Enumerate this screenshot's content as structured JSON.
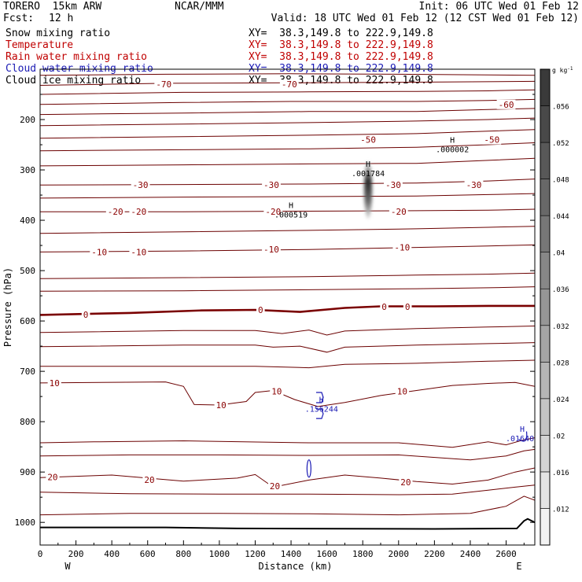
{
  "header": {
    "model": "TORERO  15km ARW",
    "org": "NCAR/MMM",
    "init": "Init: 06 UTC Wed 01 Feb 12",
    "fcst_label": "Fcst:",
    "fcst_value": "12 h",
    "valid": "Valid: 18 UTC Wed 01 Feb 12 (12 CST Wed 01 Feb 12)"
  },
  "fields": [
    {
      "name": "Snow mixing ratio",
      "xy": "XY=  38.3,149.8 to 222.9,149.8",
      "color": "#000000",
      "xy_color": "#000000"
    },
    {
      "name": "Temperature",
      "xy": "XY=  38.3,149.8 to 222.9,149.8",
      "color": "#c00000",
      "xy_color": "#c00000"
    },
    {
      "name": "Rain water mixing ratio",
      "xy": "XY=  38.3,149.8 to 222.9,149.8",
      "color": "#c00000",
      "xy_color": "#c00000"
    },
    {
      "name": "Cloud water mixing ratio",
      "xy": "XY=  38.3,149.8 to 222.9,149.8",
      "color": "#1a1ab4",
      "xy_color": "#1a1ab4"
    },
    {
      "name": "Cloud ice mixing ratio",
      "xy": "XY=  38.3,149.8 to 222.9,149.8",
      "color": "#000000",
      "xy_color": "#000000"
    }
  ],
  "chart_data": {
    "type": "cross-section contour",
    "xlabel": "Distance (km)",
    "ylabel": "Pressure (hPa)",
    "xlim": [
      0,
      2760
    ],
    "ylim": [
      1045,
      100
    ],
    "x_ticks": [
      0,
      200,
      400,
      600,
      800,
      1000,
      1200,
      1400,
      1600,
      1800,
      2000,
      2200,
      2400,
      2600
    ],
    "y_ticks": [
      200,
      300,
      400,
      500,
      600,
      700,
      800,
      900,
      1000
    ],
    "x_end_labels": {
      "left": "W",
      "right": "E"
    },
    "temperature_contour_interval": 5,
    "temperature_labels": [
      {
        "value": "-70",
        "x": 690,
        "p": 130
      },
      {
        "value": "-70",
        "x": 1390,
        "p": 130
      },
      {
        "value": "-60",
        "x": 2600,
        "p": 170
      },
      {
        "value": "-50",
        "x": 1830,
        "p": 240
      },
      {
        "value": "-50",
        "x": 2520,
        "p": 240
      },
      {
        "value": "-30",
        "x": 560,
        "p": 330
      },
      {
        "value": "-30",
        "x": 1290,
        "p": 330
      },
      {
        "value": "-30",
        "x": 1970,
        "p": 330
      },
      {
        "value": "-30",
        "x": 2420,
        "p": 330
      },
      {
        "value": "-20",
        "x": 420,
        "p": 383
      },
      {
        "value": "-20",
        "x": 550,
        "p": 383
      },
      {
        "value": "-20",
        "x": 1300,
        "p": 383
      },
      {
        "value": "-20",
        "x": 2000,
        "p": 383
      },
      {
        "value": "-10",
        "x": 330,
        "p": 463
      },
      {
        "value": "-10",
        "x": 550,
        "p": 463
      },
      {
        "value": "-10",
        "x": 1290,
        "p": 458
      },
      {
        "value": "-10",
        "x": 2020,
        "p": 454
      },
      {
        "value": "0",
        "x": 255,
        "p": 587
      },
      {
        "value": "0",
        "x": 1230,
        "p": 578
      },
      {
        "value": "0",
        "x": 1920,
        "p": 572
      },
      {
        "value": "0",
        "x": 2050,
        "p": 572
      },
      {
        "value": "10",
        "x": 80,
        "p": 723
      },
      {
        "value": "10",
        "x": 1320,
        "p": 740
      },
      {
        "value": "10",
        "x": 1010,
        "p": 767
      },
      {
        "value": "10",
        "x": 2020,
        "p": 740
      },
      {
        "value": "20",
        "x": 70,
        "p": 910
      },
      {
        "value": "20",
        "x": 610,
        "p": 915
      },
      {
        "value": "20",
        "x": 1310,
        "p": 928
      },
      {
        "value": "20",
        "x": 2040,
        "p": 920
      }
    ],
    "maxima": [
      {
        "symbol": "H",
        "value": ".001784",
        "x": 1830,
        "p": 300,
        "color": "#000000"
      },
      {
        "symbol": "H",
        "value": ".000519",
        "x": 1400,
        "p": 382,
        "color": "#000000"
      },
      {
        "symbol": "H",
        "value": ".000002",
        "x": 2300,
        "p": 252,
        "color": "#000000"
      },
      {
        "symbol": "H",
        "value": ".156244",
        "x": 1570,
        "p": 768,
        "color": "#1a1ab4"
      },
      {
        "symbol": "H",
        "value": ".016407",
        "x": 2690,
        "p": 826,
        "color": "#1a1ab4"
      }
    ],
    "colorbar": {
      "unit": "g kg",
      "unit_exp": "-1",
      "ticks": [
        ".012",
        ".016",
        ".02",
        ".024",
        ".028",
        ".032",
        ".036",
        ".04",
        ".044",
        ".048",
        ".052",
        ".056"
      ],
      "min": 0.008,
      "max": 0.06,
      "step": 0.004
    }
  },
  "colors": {
    "temperature": "#6b0000",
    "freezing": "#7a0000",
    "ground": "#000000",
    "cloud_water": "#1a1ab4"
  }
}
